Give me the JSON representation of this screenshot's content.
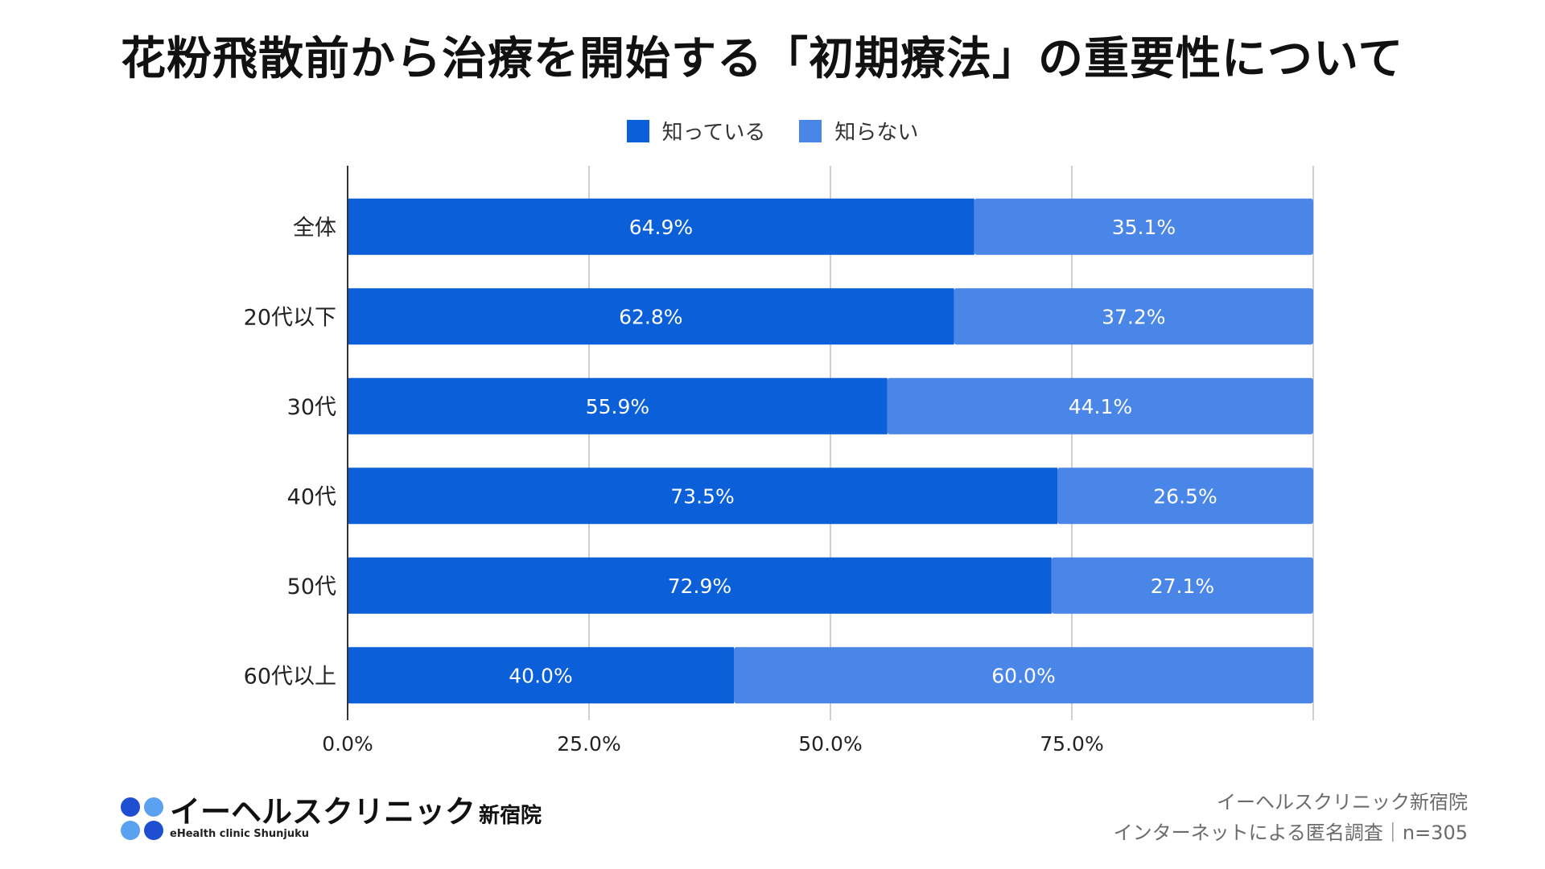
{
  "colors": {
    "known": "#0b5fd9",
    "unknown": "#4a86e8",
    "grid": "#cfcfcf",
    "axis": "#333333",
    "text": "#222222",
    "logo_dark": "#1f4fd1",
    "logo_light": "#5aa2f0"
  },
  "chart_data": {
    "type": "bar",
    "orientation": "horizontal",
    "stacked": true,
    "title": "花粉飛散前から治療を開始する「初期療法」の重要性について",
    "categories": [
      "全体",
      "20代以下",
      "30代",
      "40代",
      "50代",
      "60代以上"
    ],
    "series": [
      {
        "name": "知っている",
        "values": [
          64.9,
          62.8,
          55.9,
          73.5,
          72.9,
          40.0
        ],
        "labels": [
          "64.9%",
          "62.8%",
          "55.9%",
          "73.5%",
          "72.9%",
          "40.0%"
        ]
      },
      {
        "name": "知らない",
        "values": [
          35.1,
          37.2,
          44.1,
          26.5,
          27.1,
          60.0
        ],
        "labels": [
          "35.1%",
          "37.2%",
          "44.1%",
          "26.5%",
          "27.1%",
          "60.0%"
        ]
      }
    ],
    "xlim": [
      0,
      100
    ],
    "xticks": [
      0,
      25,
      50,
      75
    ],
    "xtick_labels": [
      "0.0%",
      "25.0%",
      "50.0%",
      "75.0%"
    ],
    "grid": true,
    "legend_position": "top-center"
  },
  "brand": {
    "name": "イーヘルスクリニック",
    "branch": "新宿院",
    "sub": "eHealth clinic Shunjuku"
  },
  "source": {
    "line1": "イーヘルスクリニック新宿院",
    "line2": "インターネットによる匿名調査｜n=305"
  }
}
